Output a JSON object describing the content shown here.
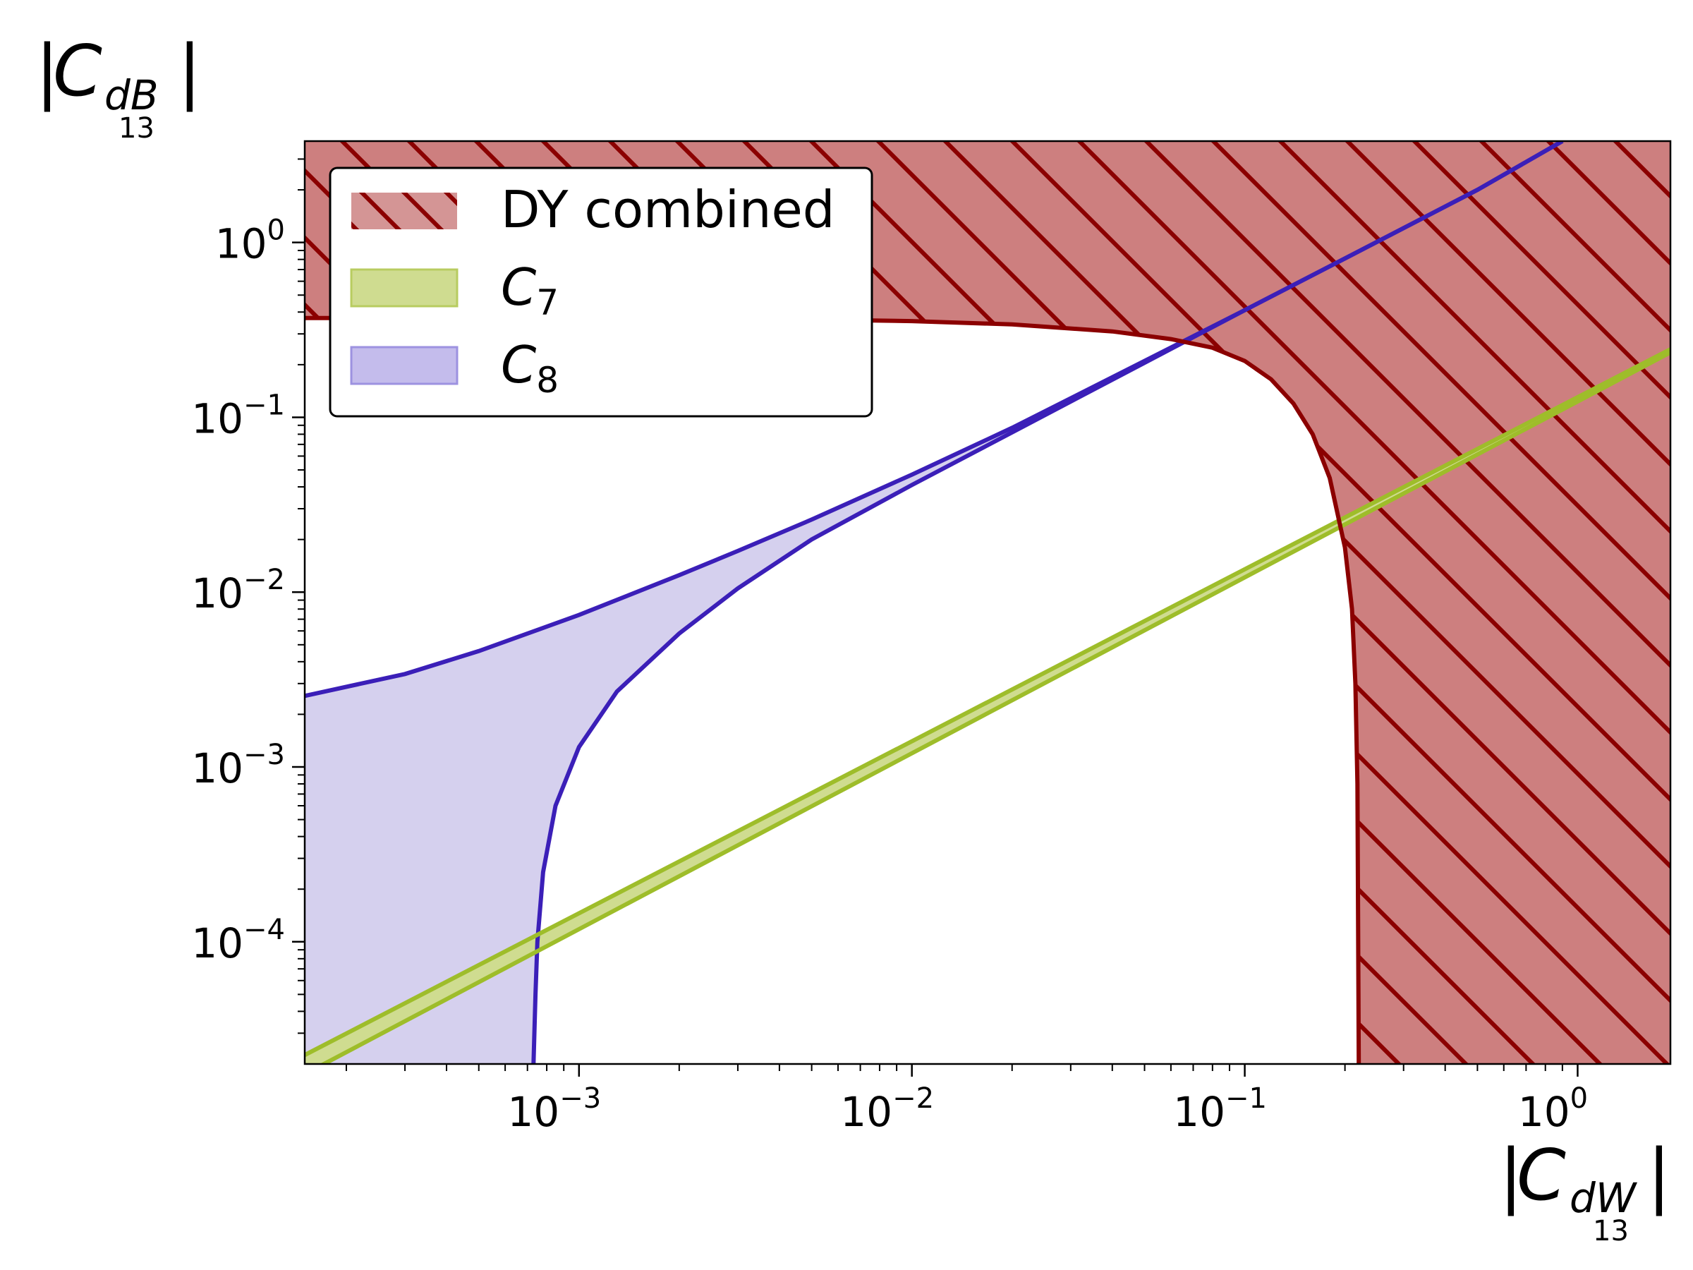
{
  "chart_data": {
    "type": "area",
    "x_scale": "log",
    "y_scale": "log",
    "xlim": [
      0.00015,
      1.9
    ],
    "ylim": [
      2e-05,
      3.8
    ],
    "x_ticks": [
      {
        "value": 0.001,
        "base": "10",
        "exp": "−3"
      },
      {
        "value": 0.01,
        "base": "10",
        "exp": "−2"
      },
      {
        "value": 0.1,
        "base": "10",
        "exp": "−1"
      },
      {
        "value": 1,
        "base": "10",
        "exp": "0"
      }
    ],
    "y_ticks": [
      {
        "value": 0.0001,
        "base": "10",
        "exp": "−4"
      },
      {
        "value": 0.001,
        "base": "10",
        "exp": "−3"
      },
      {
        "value": 0.01,
        "base": "10",
        "exp": "−2"
      },
      {
        "value": 0.1,
        "base": "10",
        "exp": "−1"
      },
      {
        "value": 1,
        "base": "10",
        "exp": "0"
      }
    ],
    "xlabel": {
      "bar_left": "|",
      "main": "C",
      "sub": "dW",
      "bar_right": "|",
      "index": "13"
    },
    "ylabel": {
      "bar_left": "|",
      "main": "C",
      "sub": "dB",
      "bar_right": "|",
      "index": "13"
    },
    "grid": false,
    "legend_position": "top-left",
    "series": [
      {
        "name": "DY combined",
        "kind": "excluded-region-hatched",
        "color": "#8b0000",
        "fill": "#cd7f7f",
        "boundary": [
          [
            0.00015,
            0.37
          ],
          [
            0.001,
            0.368
          ],
          [
            0.005,
            0.362
          ],
          [
            0.01,
            0.355
          ],
          [
            0.02,
            0.34
          ],
          [
            0.04,
            0.31
          ],
          [
            0.06,
            0.28
          ],
          [
            0.08,
            0.25
          ],
          [
            0.1,
            0.21
          ],
          [
            0.12,
            0.165
          ],
          [
            0.14,
            0.12
          ],
          [
            0.16,
            0.08
          ],
          [
            0.18,
            0.045
          ],
          [
            0.2,
            0.018
          ],
          [
            0.21,
            0.008
          ],
          [
            0.215,
            0.003
          ],
          [
            0.218,
            0.0008
          ],
          [
            0.22,
            2e-05
          ]
        ]
      },
      {
        "name": "C",
        "sub": "7",
        "kind": "band",
        "color": "#9ebd2a",
        "fill": "#cfdc90",
        "upper": [
          [
            0.00015,
            2.25e-05
          ],
          [
            1.9,
            0.245
          ]
        ],
        "lower": [
          [
            0.00015,
            1.75e-05
          ],
          [
            1.9,
            0.235
          ]
        ]
      },
      {
        "name": "C",
        "sub": "8",
        "kind": "band",
        "color": "#3b1fb8",
        "fill": "#d5d0ee",
        "upper": [
          [
            0.00015,
            0.00255
          ],
          [
            0.0003,
            0.0034
          ],
          [
            0.0005,
            0.0046
          ],
          [
            0.0007,
            0.0058
          ],
          [
            0.001,
            0.0074
          ],
          [
            0.002,
            0.0125
          ],
          [
            0.003,
            0.0172
          ],
          [
            0.005,
            0.026
          ],
          [
            0.01,
            0.047
          ],
          [
            0.02,
            0.087
          ],
          [
            0.05,
            0.21
          ],
          [
            0.1,
            0.41
          ],
          [
            0.2,
            0.81
          ],
          [
            0.5,
            2.0
          ],
          [
            0.9,
            3.8
          ]
        ],
        "lower": [
          [
            0.00073,
            2e-05
          ],
          [
            0.00074,
            5e-05
          ],
          [
            0.00075,
            0.0001
          ],
          [
            0.00078,
            0.00025
          ],
          [
            0.00085,
            0.0006
          ],
          [
            0.001,
            0.0013
          ],
          [
            0.0013,
            0.0027
          ],
          [
            0.002,
            0.0058
          ],
          [
            0.003,
            0.0105
          ],
          [
            0.005,
            0.02
          ],
          [
            0.01,
            0.041
          ],
          [
            0.02,
            0.082
          ],
          [
            0.05,
            0.205
          ],
          [
            0.1,
            0.41
          ],
          [
            0.2,
            0.81
          ],
          [
            0.5,
            2.0
          ],
          [
            0.9,
            3.8
          ]
        ]
      }
    ]
  }
}
